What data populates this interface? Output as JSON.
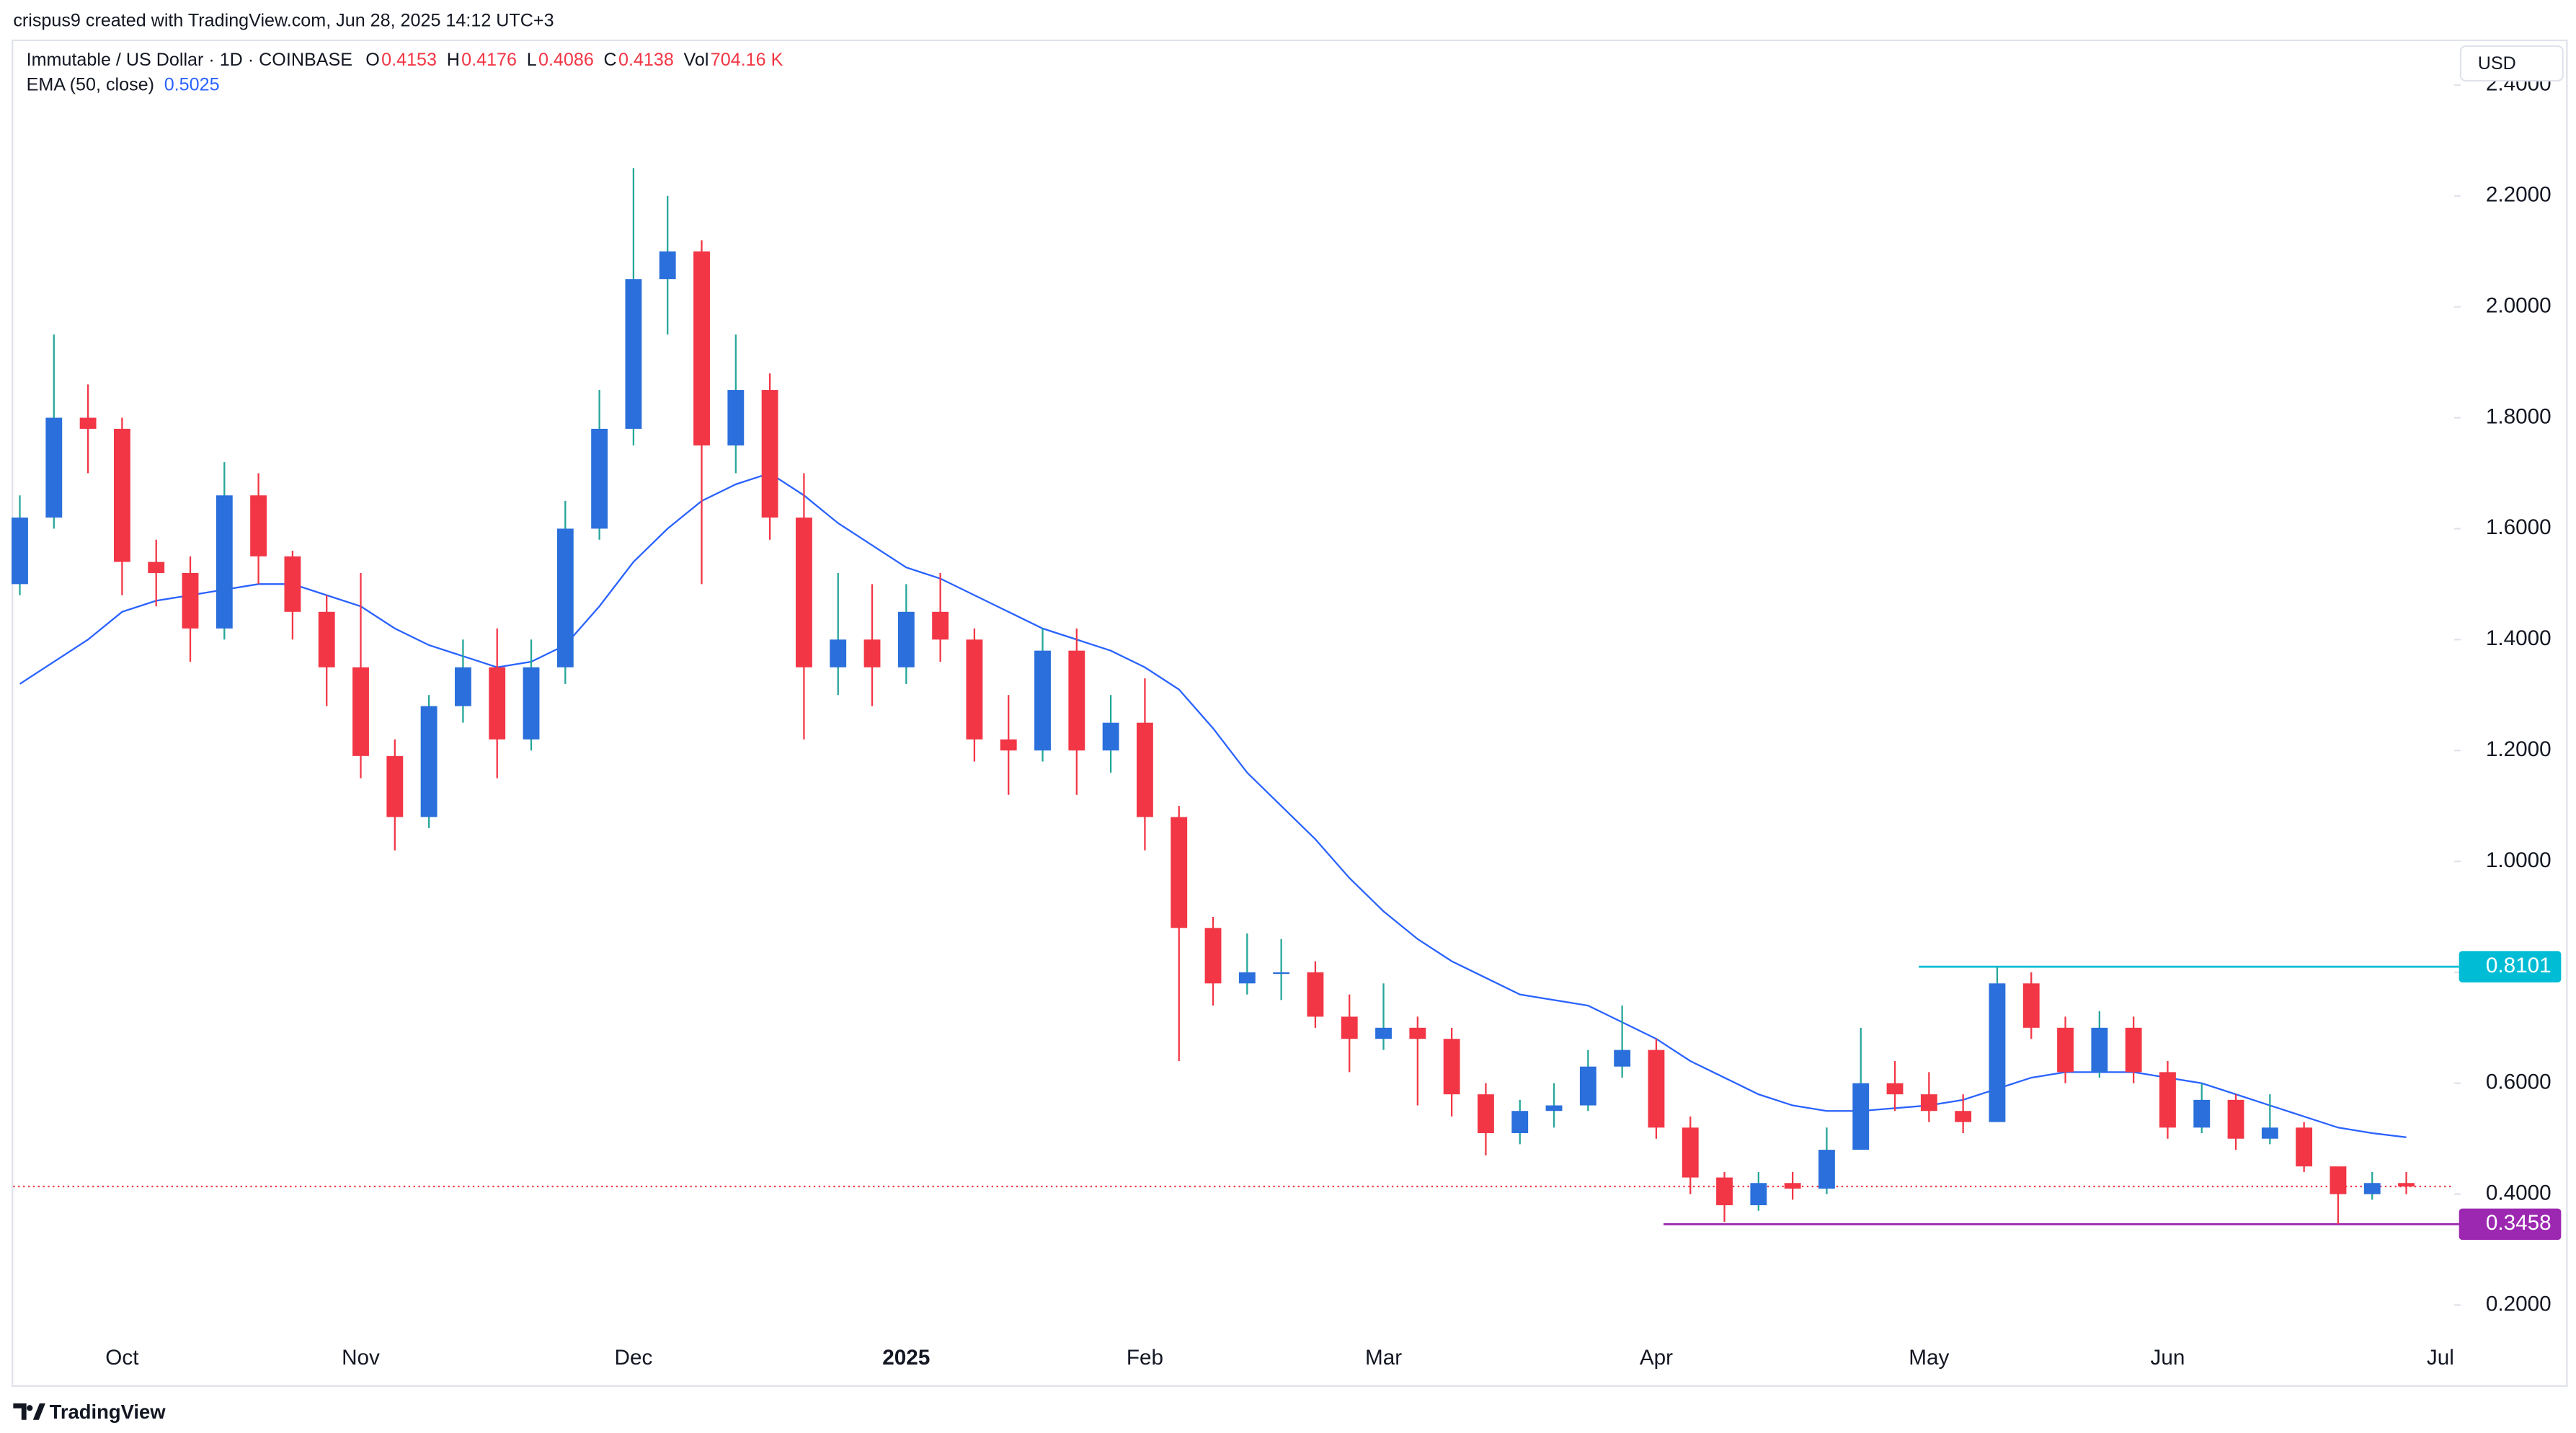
{
  "chart_data": {
    "type": "candlestick",
    "credit": "crispus9 created with TradingView.com, Jun 28, 2025 14:12 UTC+3",
    "symbol": "Immutable / US Dollar · 1D · COINBASE",
    "last": [
      {
        "label": "O",
        "value": 0.4153
      },
      {
        "label": "H",
        "value": 0.4176
      },
      {
        "label": "L",
        "value": 0.4086
      },
      {
        "label": "C",
        "value": 0.4138
      },
      {
        "label": "Vol",
        "value": "704.16 K"
      }
    ],
    "currency": "USD",
    "brand": "TradingView",
    "up_color": "#2a6fdb",
    "up_wick_color": "#26a69a",
    "down_color": "#f23645",
    "categories": [
      null,
      null,
      null,
      "Oct",
      null,
      null,
      null,
      null,
      null,
      null,
      "Nov",
      null,
      null,
      null,
      null,
      null,
      null,
      null,
      "Dec",
      null,
      null,
      null,
      null,
      null,
      null,
      null,
      "2025",
      null,
      null,
      null,
      null,
      null,
      null,
      "Feb",
      null,
      null,
      null,
      null,
      null,
      null,
      "Mar",
      null,
      null,
      null,
      null,
      null,
      null,
      null,
      "Apr",
      null,
      null,
      null,
      null,
      null,
      null,
      null,
      "May",
      null,
      null,
      null,
      null,
      null,
      null,
      "Jun",
      null,
      null,
      null,
      null,
      null,
      null,
      null,
      "Jul"
    ],
    "open": [
      1.5,
      1.62,
      1.8,
      1.78,
      1.54,
      1.52,
      1.42,
      1.66,
      1.55,
      1.45,
      1.35,
      1.19,
      1.08,
      1.28,
      1.35,
      1.22,
      1.35,
      1.6,
      1.78,
      2.05,
      2.1,
      1.75,
      1.85,
      1.62,
      1.35,
      1.4,
      1.35,
      1.45,
      1.4,
      1.22,
      1.2,
      1.38,
      1.2,
      1.25,
      1.08,
      0.88,
      0.78,
      0.8,
      0.8,
      0.72,
      0.68,
      0.7,
      0.68,
      0.58,
      0.51,
      0.55,
      0.56,
      0.63,
      0.66,
      0.52,
      0.43,
      0.38,
      0.42,
      0.41,
      0.48,
      0.6,
      0.58,
      0.55,
      0.53,
      0.78,
      0.7,
      0.62,
      0.7,
      0.62,
      0.52,
      0.57,
      0.5,
      0.52,
      0.45,
      0.4,
      0.42,
      null
    ],
    "high": [
      1.66,
      1.95,
      1.86,
      1.8,
      1.58,
      1.55,
      1.72,
      1.7,
      1.56,
      1.48,
      1.52,
      1.22,
      1.3,
      1.4,
      1.42,
      1.4,
      1.65,
      1.85,
      2.25,
      2.2,
      2.12,
      1.95,
      1.88,
      1.7,
      1.52,
      1.5,
      1.5,
      1.52,
      1.42,
      1.3,
      1.42,
      1.42,
      1.3,
      1.33,
      1.1,
      0.9,
      0.87,
      0.86,
      0.82,
      0.76,
      0.78,
      0.72,
      0.7,
      0.6,
      0.57,
      0.6,
      0.66,
      0.74,
      0.68,
      0.54,
      0.44,
      0.44,
      0.44,
      0.52,
      0.7,
      0.64,
      0.62,
      0.58,
      0.8101,
      0.8,
      0.72,
      0.73,
      0.72,
      0.64,
      0.6,
      0.58,
      0.58,
      0.53,
      0.44,
      0.44,
      0.44,
      null
    ],
    "low": [
      1.48,
      1.6,
      1.7,
      1.48,
      1.46,
      1.36,
      1.4,
      1.5,
      1.4,
      1.28,
      1.15,
      1.02,
      1.06,
      1.25,
      1.15,
      1.2,
      1.32,
      1.58,
      1.75,
      1.95,
      1.5,
      1.7,
      1.58,
      1.22,
      1.3,
      1.28,
      1.32,
      1.36,
      1.18,
      1.12,
      1.18,
      1.12,
      1.16,
      1.02,
      0.64,
      0.74,
      0.76,
      0.75,
      0.7,
      0.62,
      0.66,
      0.56,
      0.54,
      0.47,
      0.49,
      0.52,
      0.55,
      0.61,
      0.5,
      0.4,
      0.35,
      0.37,
      0.39,
      0.4,
      0.48,
      0.55,
      0.53,
      0.51,
      0.53,
      0.68,
      0.6,
      0.61,
      0.6,
      0.5,
      0.51,
      0.48,
      0.49,
      0.44,
      0.3458,
      0.39,
      0.4,
      null
    ],
    "close": [
      1.62,
      1.8,
      1.78,
      1.54,
      1.52,
      1.42,
      1.66,
      1.55,
      1.45,
      1.35,
      1.19,
      1.08,
      1.28,
      1.35,
      1.22,
      1.35,
      1.6,
      1.78,
      2.05,
      2.1,
      1.75,
      1.85,
      1.62,
      1.35,
      1.4,
      1.35,
      1.45,
      1.4,
      1.22,
      1.2,
      1.38,
      1.2,
      1.25,
      1.08,
      0.88,
      0.78,
      0.8,
      0.8,
      0.72,
      0.68,
      0.7,
      0.68,
      0.58,
      0.51,
      0.55,
      0.56,
      0.63,
      0.66,
      0.52,
      0.43,
      0.38,
      0.42,
      0.41,
      0.48,
      0.6,
      0.58,
      0.55,
      0.53,
      0.78,
      0.7,
      0.62,
      0.7,
      0.62,
      0.52,
      0.57,
      0.5,
      0.52,
      0.45,
      0.4,
      0.42,
      0.4138,
      null
    ],
    "ema": {
      "name": "EMA (50, close)",
      "value": 0.5025,
      "color": "#2962ff",
      "values": [
        1.32,
        1.36,
        1.4,
        1.45,
        1.47,
        1.48,
        1.49,
        1.5,
        1.5,
        1.48,
        1.46,
        1.42,
        1.39,
        1.37,
        1.35,
        1.36,
        1.39,
        1.46,
        1.54,
        1.6,
        1.65,
        1.68,
        1.7,
        1.66,
        1.61,
        1.57,
        1.53,
        1.51,
        1.48,
        1.45,
        1.42,
        1.4,
        1.38,
        1.35,
        1.31,
        1.24,
        1.16,
        1.1,
        1.04,
        0.97,
        0.91,
        0.86,
        0.82,
        0.79,
        0.76,
        0.75,
        0.74,
        0.71,
        0.68,
        0.64,
        0.61,
        0.58,
        0.56,
        0.55,
        0.55,
        0.555,
        0.56,
        0.57,
        0.59,
        0.61,
        0.62,
        0.62,
        0.62,
        0.61,
        0.6,
        0.58,
        0.56,
        0.54,
        0.52,
        0.51,
        0.5025,
        null
      ]
    },
    "levels": [
      {
        "value": 0.8101,
        "color": "#00bcd4"
      },
      {
        "value": 0.3458,
        "color": "#9c27b0"
      }
    ],
    "price_line_color": "#f23645",
    "ylim": [
      0.1475,
      2.479
    ],
    "yticks": [
      {
        "value": 0.2,
        "label": "0.2000"
      },
      {
        "value": 0.4,
        "label": "0.4000"
      },
      {
        "value": 0.6,
        "label": "0.6000"
      },
      {
        "value": 0.8,
        "label": "0.8000"
      },
      {
        "value": 1.0,
        "label": "1.0000"
      },
      {
        "value": 1.2,
        "label": "1.2000"
      },
      {
        "value": 1.4,
        "label": "1.4000"
      },
      {
        "value": 1.6,
        "label": "1.6000"
      },
      {
        "value": 1.8,
        "label": "1.8000"
      },
      {
        "value": 2.0,
        "label": "2.0000"
      },
      {
        "value": 2.2,
        "label": "2.2000"
      },
      {
        "value": 2.4,
        "label": "2.4000"
      }
    ]
  }
}
